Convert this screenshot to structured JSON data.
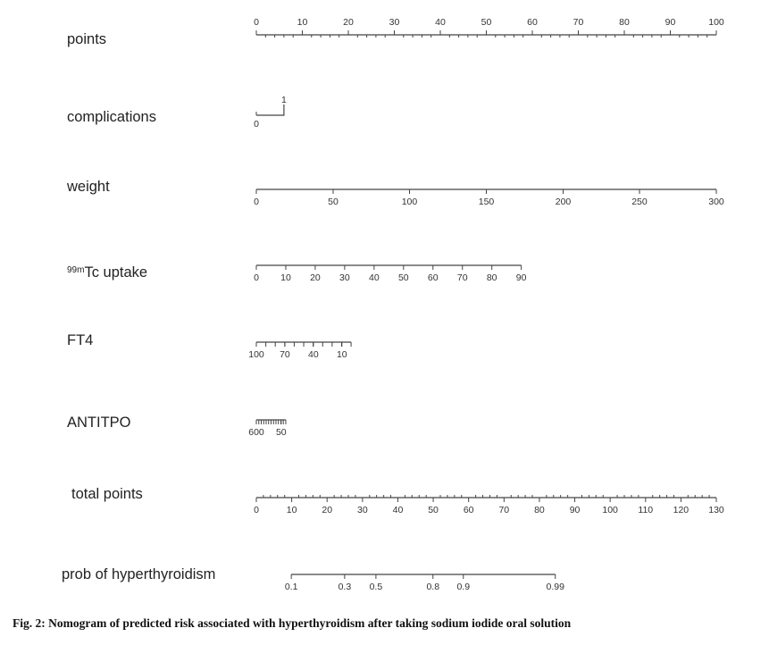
{
  "chart_data": {
    "type": "nomogram",
    "rows": [
      {
        "key": "points",
        "label": "points",
        "ticks": [
          "0",
          "10",
          "20",
          "30",
          "40",
          "50",
          "60",
          "70",
          "80",
          "90",
          "100"
        ],
        "tick_values": [
          0,
          10,
          20,
          30,
          40,
          50,
          60,
          70,
          80,
          90,
          100
        ],
        "tick_positions": [
          0,
          10,
          20,
          30,
          40,
          50,
          60,
          70,
          80,
          90,
          100
        ],
        "label_side": "above",
        "minor_per_major": 5
      },
      {
        "key": "complications",
        "label": "complications",
        "ticks": [
          "0",
          "1"
        ],
        "tick_values": [
          0,
          1
        ],
        "tick_positions": [
          0,
          6
        ],
        "label_side": "step"
      },
      {
        "key": "weight",
        "label": "weight",
        "ticks": [
          "0",
          "50",
          "100",
          "150",
          "200",
          "250",
          "300"
        ],
        "tick_values": [
          0,
          50,
          100,
          150,
          200,
          250,
          300
        ],
        "tick_positions": [
          0,
          16.7,
          33.3,
          50,
          66.7,
          83.3,
          100
        ],
        "label_side": "below"
      },
      {
        "key": "tc_uptake",
        "label_prefix": "99m",
        "label": "Tc uptake",
        "ticks": [
          "0",
          "10",
          "20",
          "30",
          "40",
          "50",
          "60",
          "70",
          "80",
          "90"
        ],
        "tick_values": [
          0,
          10,
          20,
          30,
          40,
          50,
          60,
          70,
          80,
          90
        ],
        "tick_positions": [
          0,
          6.4,
          12.8,
          19.2,
          25.6,
          32,
          38.4,
          44.8,
          51.2,
          57.6
        ],
        "label_side": "below"
      },
      {
        "key": "ft4",
        "label": "FT4",
        "ticks": [
          "100",
          "70",
          "40",
          "10"
        ],
        "tick_values": [
          100,
          70,
          40,
          10
        ],
        "tick_positions": [
          0,
          6.2,
          12.4,
          18.6
        ],
        "label_side": "below",
        "minor_ticks_count": 11,
        "minor_span": [
          0,
          20.6
        ]
      },
      {
        "key": "antitpo",
        "label": "ANTITPO",
        "ticks": [
          "600",
          "50"
        ],
        "tick_values": [
          600,
          50
        ],
        "tick_positions": [
          0,
          5.4
        ],
        "label_side": "below",
        "minor_ticks_count": 13,
        "minor_span": [
          0,
          6.4
        ]
      },
      {
        "key": "total_points",
        "label": "total points",
        "ticks": [
          "0",
          "10",
          "20",
          "30",
          "40",
          "50",
          "60",
          "70",
          "80",
          "90",
          "100",
          "110",
          "120",
          "130"
        ],
        "tick_values": [
          0,
          10,
          20,
          30,
          40,
          50,
          60,
          70,
          80,
          90,
          100,
          110,
          120,
          130
        ],
        "tick_positions": [
          0,
          7.69,
          15.38,
          23.08,
          30.77,
          38.46,
          46.15,
          53.85,
          61.54,
          69.23,
          76.92,
          84.62,
          92.31,
          100
        ],
        "label_side": "below",
        "minor_per_major": 5
      },
      {
        "key": "prob",
        "label": "prob of hyperthyroidism",
        "ticks": [
          "0.1",
          "0.3",
          "0.5",
          "0.8",
          "0.9",
          "0.99"
        ],
        "tick_values": [
          0.1,
          0.3,
          0.5,
          0.8,
          0.9,
          0.99
        ],
        "tick_positions": [
          7.6,
          19.2,
          26.0,
          38.4,
          45.0,
          65.0
        ],
        "label_side": "below"
      }
    ]
  },
  "caption": "Fig. 2: Nomogram of predicted risk associated with hyperthyroidism after taking sodium iodide oral solution"
}
